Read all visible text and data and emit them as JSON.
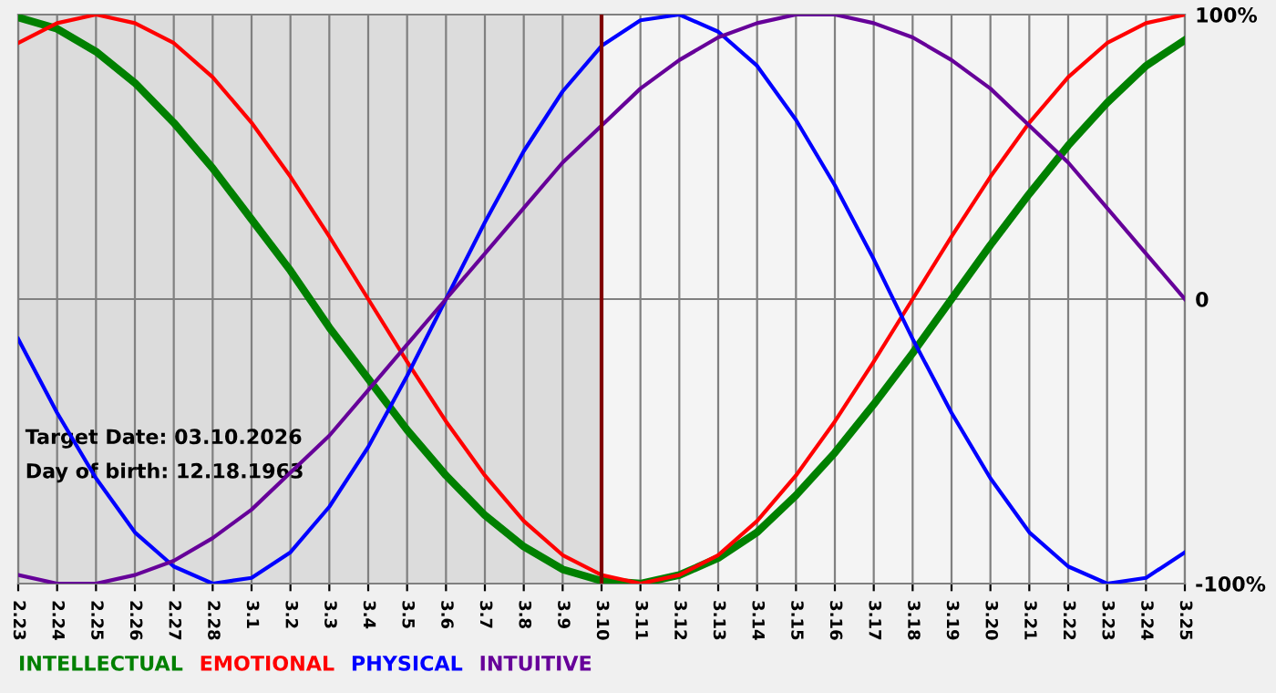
{
  "chart_data": {
    "type": "line",
    "categories": [
      "2.23",
      "2.24",
      "2.25",
      "2.26",
      "2.27",
      "2.28",
      "3.1",
      "3.2",
      "3.3",
      "3.4",
      "3.5",
      "3.6",
      "3.7",
      "3.8",
      "3.9",
      "3.10",
      "3.11",
      "3.12",
      "3.13",
      "3.14",
      "3.15",
      "3.16",
      "3.17",
      "3.18",
      "3.19",
      "3.20",
      "3.21",
      "3.22",
      "3.23",
      "3.24",
      "3.25"
    ],
    "series": [
      {
        "name": "INTELLECTUAL",
        "color": "#008000",
        "values": [
          99,
          95,
          87,
          76,
          62,
          46,
          28,
          10,
          -10,
          -28,
          -46,
          -62,
          -76,
          -87,
          -95,
          -99,
          -100,
          -97,
          -91,
          -82,
          -69,
          -54,
          -37,
          -19,
          0,
          19,
          37,
          54,
          69,
          82,
          91
        ]
      },
      {
        "name": "EMOTIONAL",
        "color": "#ff0000",
        "values": [
          90,
          97,
          100,
          97,
          90,
          78,
          62,
          43,
          22,
          0,
          -22,
          -43,
          -62,
          -78,
          -90,
          -97,
          -100,
          -97,
          -90,
          -78,
          -62,
          -43,
          -22,
          0,
          22,
          43,
          62,
          78,
          90,
          97,
          100
        ]
      },
      {
        "name": "PHYSICAL",
        "color": "#0000ff",
        "values": [
          -14,
          -40,
          -63,
          -82,
          -94,
          -100,
          -98,
          -89,
          -73,
          -52,
          -27,
          0,
          27,
          52,
          73,
          89,
          98,
          100,
          94,
          82,
          63,
          40,
          14,
          -14,
          -40,
          -63,
          -82,
          -94,
          -100,
          -98,
          -89
        ]
      },
      {
        "name": "INTUITIVE",
        "color": "#660099",
        "values": [
          -97,
          -100,
          -100,
          -97,
          -92,
          -84,
          -74,
          -61,
          -48,
          -32,
          -16,
          0,
          16,
          32,
          48,
          61,
          74,
          84,
          92,
          97,
          100,
          100,
          97,
          92,
          84,
          74,
          61,
          48,
          32,
          16,
          0
        ]
      }
    ],
    "ylim": [
      -100,
      100
    ],
    "yticks": [
      {
        "value": 100,
        "label": "100%"
      },
      0,
      {
        "value": -100,
        "label": "-100%"
      }
    ],
    "ref_lines": [
      {
        "axis": "x",
        "value": "3.10",
        "color": "#800000"
      }
    ],
    "bands": [
      {
        "axis": "x",
        "from": "2.23",
        "to": "3.10",
        "color": "#dcdcdc"
      }
    ],
    "annotations": [
      "Target Date: 03.10.2026",
      "Day of birth: 12.18.1963"
    ],
    "grid": true,
    "legend": "bottom left",
    "marker": "none",
    "line_style": "solid"
  }
}
